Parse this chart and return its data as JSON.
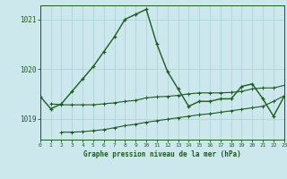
{
  "title": "Graphe pression niveau de la mer (hPa)",
  "background_color": "#cce8ed",
  "grid_color": "#aed4da",
  "line_color_main": "#1a5c1a",
  "xlim": [
    0,
    23
  ],
  "ylim": [
    1018.58,
    1021.28
  ],
  "yticks": [
    1019,
    1020,
    1021
  ],
  "xticks": [
    0,
    1,
    2,
    3,
    4,
    5,
    6,
    7,
    8,
    9,
    10,
    11,
    12,
    13,
    14,
    15,
    16,
    17,
    18,
    19,
    20,
    21,
    22,
    23
  ],
  "series_main": {
    "x": [
      0,
      1,
      2,
      3,
      4,
      5,
      6,
      7,
      8,
      9,
      10,
      11,
      12,
      13,
      14,
      15,
      16,
      17,
      18,
      19,
      20,
      21,
      22,
      23
    ],
    "y": [
      1019.45,
      1019.2,
      1019.3,
      1019.55,
      1019.8,
      1020.05,
      1020.35,
      1020.65,
      1021.0,
      1021.1,
      1021.2,
      1020.5,
      1019.95,
      1019.6,
      1019.25,
      1019.35,
      1019.35,
      1019.4,
      1019.4,
      1019.65,
      1019.7,
      1019.4,
      1019.05,
      1019.45
    ]
  },
  "series_flat1": {
    "x": [
      1,
      2,
      3,
      4,
      5,
      6,
      7,
      8,
      9,
      10,
      11,
      12,
      13,
      14,
      15,
      16,
      17,
      18,
      19,
      20,
      21,
      22,
      23
    ],
    "y": [
      1019.3,
      1019.28,
      1019.28,
      1019.28,
      1019.28,
      1019.3,
      1019.32,
      1019.35,
      1019.37,
      1019.42,
      1019.44,
      1019.45,
      1019.47,
      1019.5,
      1019.52,
      1019.52,
      1019.52,
      1019.53,
      1019.55,
      1019.6,
      1019.62,
      1019.62,
      1019.67
    ]
  },
  "series_flat2": {
    "x": [
      2,
      3,
      4,
      5,
      6,
      7,
      8,
      9,
      10,
      11,
      12,
      13,
      14,
      15,
      16,
      17,
      18,
      19,
      20,
      21,
      22,
      23
    ],
    "y": [
      1018.73,
      1018.73,
      1018.74,
      1018.76,
      1018.78,
      1018.82,
      1018.86,
      1018.89,
      1018.93,
      1018.96,
      1018.99,
      1019.02,
      1019.05,
      1019.08,
      1019.1,
      1019.13,
      1019.16,
      1019.19,
      1019.22,
      1019.25,
      1019.35,
      1019.46
    ]
  }
}
